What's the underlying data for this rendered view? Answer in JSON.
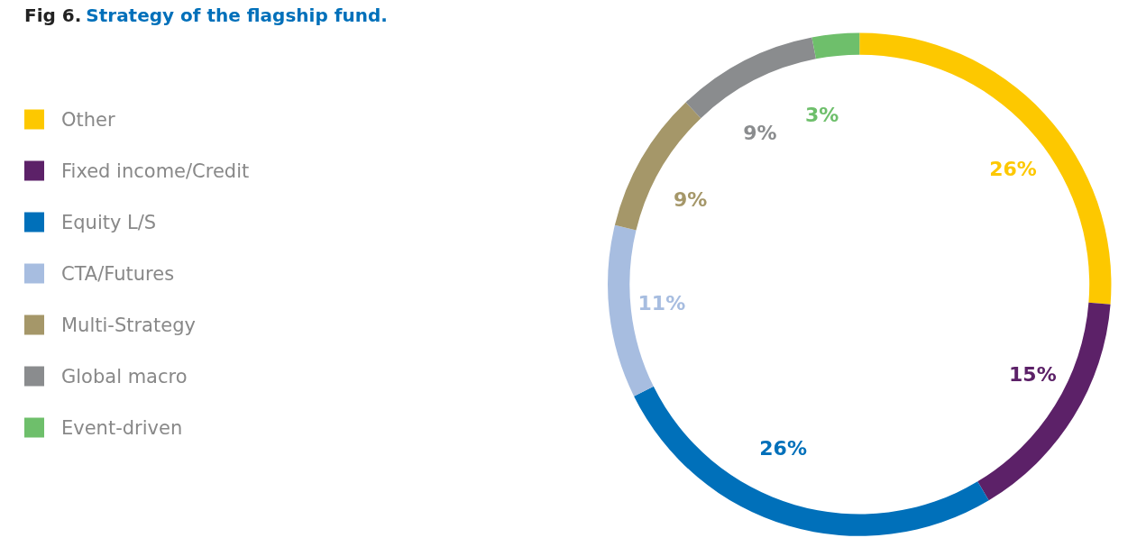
{
  "chart_data": {
    "type": "donut",
    "title": "Fig 6. Strategy of the flagship fund.",
    "categories": [
      "Other",
      "Fixed income/Credit",
      "Equity L/S",
      "CTA/Futures",
      "Multi-Strategy",
      "Global macro",
      "Event-driven"
    ],
    "values": [
      26,
      15,
      26,
      11,
      9,
      9,
      3
    ],
    "value_labels": [
      "26%",
      "15%",
      "26%",
      "11%",
      "9%",
      "9%",
      "3%"
    ],
    "colors": [
      "#fdc800",
      "#5c2168",
      "#0070ba",
      "#a7bde0",
      "#a59769",
      "#8a8c8e",
      "#6ebf6b"
    ],
    "legend": "left"
  }
}
